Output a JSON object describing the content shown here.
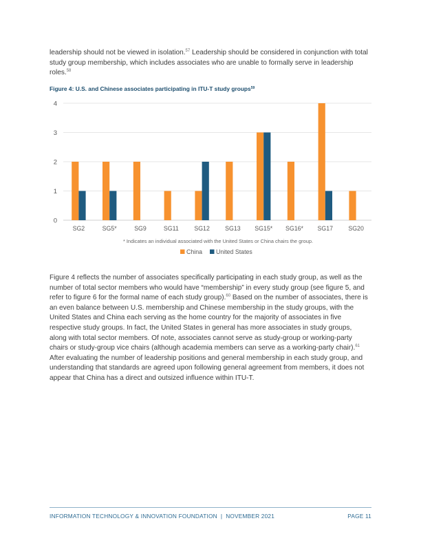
{
  "paragraph1": {
    "text_a": "leadership should not be viewed in isolation.",
    "ref_a": "57",
    "text_b": " Leadership should be considered in conjunction with total study group membership, which includes associates who are unable to formally serve in leadership roles.",
    "ref_b": "58"
  },
  "figure": {
    "title": "Figure 4: U.S. and Chinese associates participating in ITU-T study groups",
    "title_ref": "59",
    "footnote": "* Indicates an individual associated with the United States or China chairs the group."
  },
  "chart_data": {
    "type": "bar",
    "categories": [
      "SG2",
      "SG5*",
      "SG9",
      "SG11",
      "SG12",
      "SG13",
      "SG15*",
      "SG16*",
      "SG17",
      "SG20"
    ],
    "series": [
      {
        "name": "China",
        "color": "#F7922F",
        "values": [
          2,
          2,
          2,
          1,
          1,
          2,
          3,
          2,
          4,
          1
        ]
      },
      {
        "name": "United States",
        "color": "#1F5B80",
        "values": [
          1,
          1,
          0,
          0,
          2,
          0,
          3,
          0,
          1,
          0
        ]
      }
    ],
    "yticks": [
      0,
      1,
      2,
      3,
      4
    ],
    "ylim": [
      0,
      4
    ],
    "grid": true,
    "legend_position": "bottom"
  },
  "paragraph2": {
    "text_a": "Figure 4 reflects the number of associates specifically participating in each study group, as well as the number of total sector members who would have “membership” in every study group (see figure 5, and refer to figure 6 for the formal name of each study group).",
    "ref_a": "60",
    "text_b": " Based on the number of associates, there is an even balance between U.S. membership and Chinese membership in the study groups, with the United States and China each serving as the home country for the majority of associates in five respective study groups. In fact, the United States in general has more associates in study groups, along with total sector members. Of note, associates cannot serve as study-group or working-party chairs or study-group vice chairs (although academia members can serve as a working-party chair).",
    "ref_b": "61",
    "text_c": " After evaluating the number of leadership positions and general membership in each study group, and understanding that standards are agreed upon following general agreement from members, it does not appear that China has a direct and outsized influence within ITU-T."
  },
  "footer": {
    "left": "INFORMATION TECHNOLOGY & INNOVATION FOUNDATION  |  NOVEMBER 2021",
    "right": "PAGE 11"
  }
}
